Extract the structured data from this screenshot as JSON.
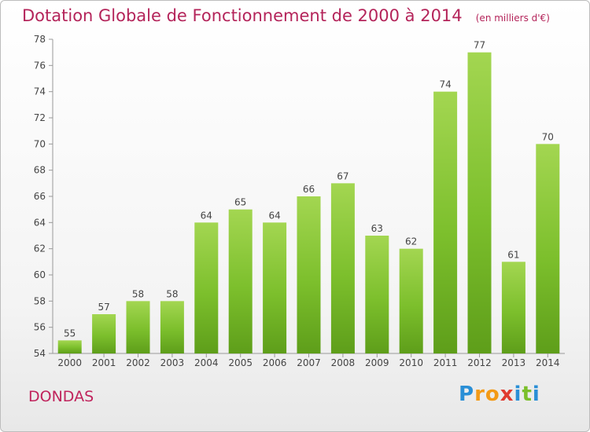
{
  "chart_data": {
    "type": "bar",
    "title": "Dotation Globale de Fonctionnement de 2000 à 2014",
    "subtitle": "(en milliers d'€)",
    "categories": [
      "2000",
      "2001",
      "2002",
      "2003",
      "2004",
      "2005",
      "2006",
      "2007",
      "2008",
      "2009",
      "2010",
      "2011",
      "2012",
      "2013",
      "2014"
    ],
    "values": [
      55,
      57,
      58,
      58,
      64,
      65,
      64,
      66,
      67,
      63,
      62,
      74,
      77,
      61,
      70
    ],
    "ylim": [
      54,
      78
    ],
    "yticks": [
      54,
      56,
      58,
      60,
      62,
      64,
      66,
      68,
      70,
      72,
      74,
      76,
      78
    ],
    "grid": false,
    "bar_color": "#7cbf2c",
    "bar_color_light": "#a3d651",
    "bar_color_dark": "#5e9e1a"
  },
  "footer": {
    "commune": "DONDAS",
    "logo_letters": [
      {
        "char": "P",
        "color": "#2a8fd6"
      },
      {
        "char": "r",
        "color": "#f39a16"
      },
      {
        "char": "o",
        "color": "#f39a16"
      },
      {
        "char": "x",
        "color": "#e03a2f"
      },
      {
        "char": "i",
        "color": "#2a8fd6"
      },
      {
        "char": "t",
        "color": "#7bbf2a"
      },
      {
        "char": "i",
        "color": "#2a8fd6"
      }
    ]
  }
}
